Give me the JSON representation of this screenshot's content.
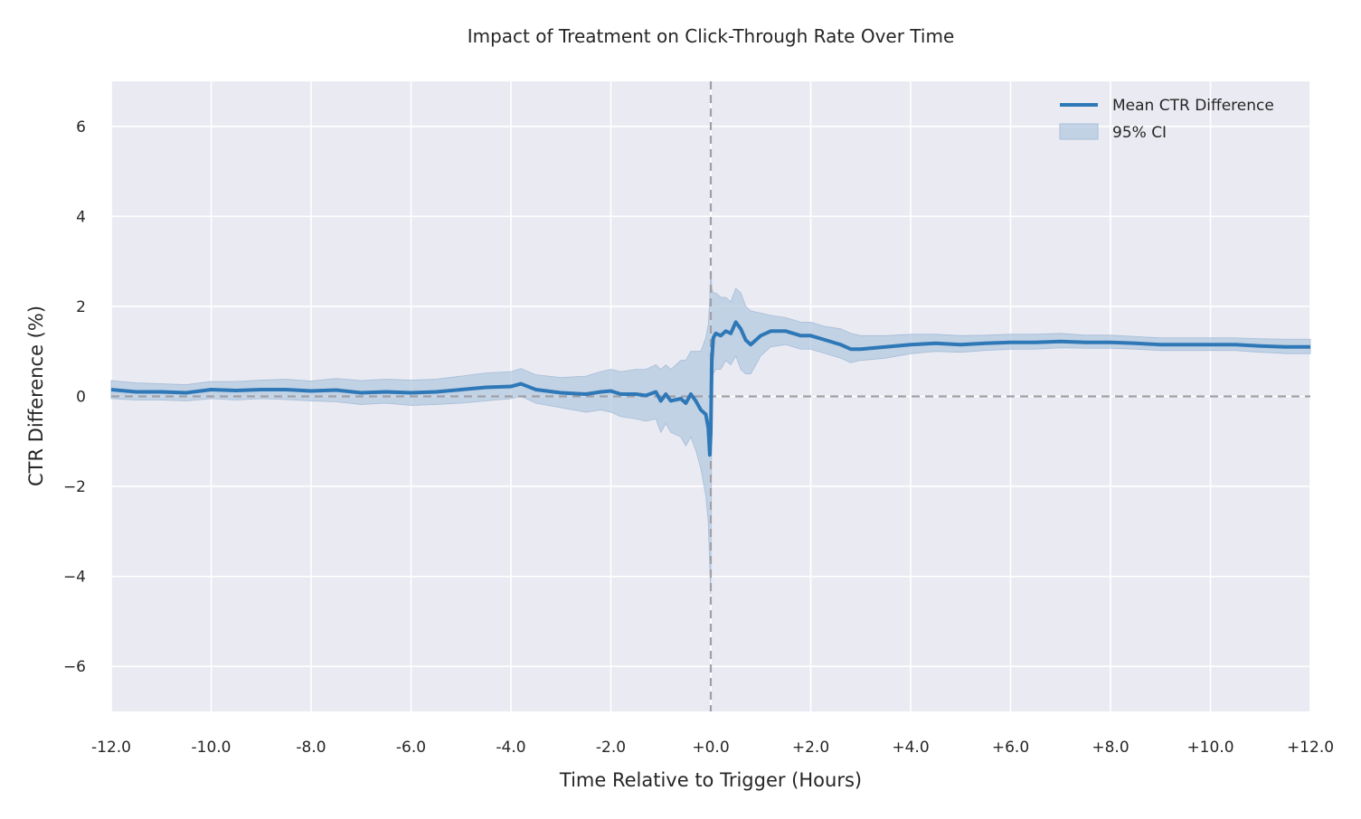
{
  "chart_data": {
    "type": "line",
    "title": "Impact of Treatment on Click-Through Rate Over Time",
    "xlabel": "Time Relative to Trigger (Hours)",
    "ylabel": "CTR Difference (%)",
    "xlim": [
      -12,
      12
    ],
    "ylim": [
      -7,
      7
    ],
    "x_ticks": [
      -12,
      -10,
      -8,
      -6,
      -4,
      -2,
      0,
      2,
      4,
      6,
      8,
      10,
      12
    ],
    "x_tick_labels": [
      "-12.0",
      "-10.0",
      "-8.0",
      "-6.0",
      "-4.0",
      "-2.0",
      "+0.0",
      "+2.0",
      "+4.0",
      "+6.0",
      "+8.0",
      "+10.0",
      "+12.0"
    ],
    "y_ticks": [
      -6,
      -4,
      -2,
      0,
      2,
      4,
      6
    ],
    "y_tick_labels": [
      "−6",
      "−4",
      "−2",
      "0",
      "2",
      "4",
      "6"
    ],
    "grid": true,
    "legend_position": "top-right",
    "reference_lines": {
      "horizontal": 0,
      "vertical": 0
    },
    "series": [
      {
        "name": "Mean CTR Difference",
        "color": "#2e78b7",
        "x": [
          -12,
          -11.5,
          -11,
          -10.5,
          -10,
          -9.5,
          -9,
          -8.5,
          -8,
          -7.5,
          -7,
          -6.5,
          -6,
          -5.5,
          -5,
          -4.5,
          -4,
          -3.8,
          -3.5,
          -3,
          -2.5,
          -2.2,
          -2,
          -1.8,
          -1.5,
          -1.3,
          -1.1,
          -1,
          -0.9,
          -0.8,
          -0.6,
          -0.5,
          -0.4,
          -0.3,
          -0.2,
          -0.1,
          -0.05,
          -0.02,
          0,
          0.02,
          0.05,
          0.1,
          0.2,
          0.3,
          0.4,
          0.5,
          0.6,
          0.7,
          0.8,
          1,
          1.2,
          1.5,
          1.8,
          2,
          2.3,
          2.6,
          2.8,
          3,
          3.5,
          4,
          4.5,
          5,
          5.5,
          6,
          6.5,
          7,
          7.5,
          8,
          8.5,
          9,
          9.5,
          10,
          10.5,
          11,
          11.5,
          12
        ],
        "y": [
          0.15,
          0.1,
          0.1,
          0.08,
          0.15,
          0.13,
          0.15,
          0.15,
          0.12,
          0.14,
          0.08,
          0.1,
          0.08,
          0.1,
          0.15,
          0.2,
          0.22,
          0.28,
          0.15,
          0.08,
          0.05,
          0.1,
          0.12,
          0.05,
          0.05,
          0.02,
          0.1,
          -0.1,
          0.05,
          -0.1,
          -0.05,
          -0.15,
          0.05,
          -0.1,
          -0.3,
          -0.4,
          -0.7,
          -1.3,
          -0.8,
          0.8,
          1.3,
          1.4,
          1.35,
          1.45,
          1.4,
          1.65,
          1.5,
          1.25,
          1.15,
          1.35,
          1.45,
          1.45,
          1.35,
          1.35,
          1.25,
          1.15,
          1.05,
          1.05,
          1.1,
          1.15,
          1.18,
          1.15,
          1.18,
          1.2,
          1.2,
          1.22,
          1.2,
          1.2,
          1.18,
          1.15,
          1.15,
          1.15,
          1.15,
          1.12,
          1.1,
          1.1
        ]
      },
      {
        "name": "95% CI",
        "color": "#b0c8e0",
        "x": [
          -12,
          -11.5,
          -11,
          -10.5,
          -10,
          -9.5,
          -9,
          -8.5,
          -8,
          -7.5,
          -7,
          -6.5,
          -6,
          -5.5,
          -5,
          -4.5,
          -4,
          -3.8,
          -3.5,
          -3,
          -2.5,
          -2.2,
          -2,
          -1.8,
          -1.5,
          -1.3,
          -1.1,
          -1,
          -0.9,
          -0.8,
          -0.6,
          -0.5,
          -0.4,
          -0.3,
          -0.2,
          -0.1,
          -0.05,
          -0.02,
          0,
          0.02,
          0.05,
          0.1,
          0.2,
          0.3,
          0.4,
          0.5,
          0.6,
          0.7,
          0.8,
          1,
          1.2,
          1.5,
          1.8,
          2,
          2.3,
          2.6,
          2.8,
          3,
          3.5,
          4,
          4.5,
          5,
          5.5,
          6,
          6.5,
          7,
          7.5,
          8,
          8.5,
          9,
          9.5,
          10,
          10.5,
          11,
          11.5,
          12
        ],
        "lower": [
          -0.05,
          -0.08,
          -0.08,
          -0.1,
          -0.05,
          -0.08,
          -0.05,
          -0.07,
          -0.1,
          -0.12,
          -0.18,
          -0.15,
          -0.2,
          -0.18,
          -0.15,
          -0.1,
          -0.05,
          0,
          -0.15,
          -0.25,
          -0.35,
          -0.3,
          -0.35,
          -0.45,
          -0.5,
          -0.55,
          -0.5,
          -0.8,
          -0.6,
          -0.8,
          -0.9,
          -1.1,
          -0.9,
          -1.2,
          -1.6,
          -2.2,
          -2.8,
          -3.8,
          -4.4,
          -0.2,
          0.5,
          0.6,
          0.6,
          0.8,
          0.7,
          0.9,
          0.6,
          0.5,
          0.5,
          0.9,
          1.1,
          1.15,
          1.05,
          1.05,
          0.95,
          0.85,
          0.75,
          0.8,
          0.85,
          0.95,
          1,
          0.98,
          1.02,
          1.05,
          1.05,
          1.08,
          1.07,
          1.07,
          1.05,
          1.02,
          1.02,
          1.02,
          1.02,
          0.98,
          0.95,
          0.95
        ],
        "upper": [
          0.35,
          0.3,
          0.28,
          0.26,
          0.33,
          0.33,
          0.36,
          0.38,
          0.34,
          0.4,
          0.35,
          0.38,
          0.36,
          0.38,
          0.45,
          0.52,
          0.55,
          0.62,
          0.48,
          0.42,
          0.45,
          0.55,
          0.6,
          0.55,
          0.6,
          0.6,
          0.7,
          0.6,
          0.7,
          0.6,
          0.8,
          0.8,
          1.0,
          1.0,
          1.0,
          1.3,
          1.6,
          2.2,
          2.8,
          2.4,
          2.3,
          2.3,
          2.2,
          2.2,
          2.1,
          2.4,
          2.3,
          2.0,
          1.9,
          1.85,
          1.8,
          1.75,
          1.65,
          1.65,
          1.55,
          1.5,
          1.4,
          1.35,
          1.35,
          1.38,
          1.38,
          1.35,
          1.36,
          1.38,
          1.38,
          1.4,
          1.36,
          1.36,
          1.33,
          1.3,
          1.3,
          1.3,
          1.3,
          1.28,
          1.27,
          1.27
        ]
      }
    ]
  }
}
